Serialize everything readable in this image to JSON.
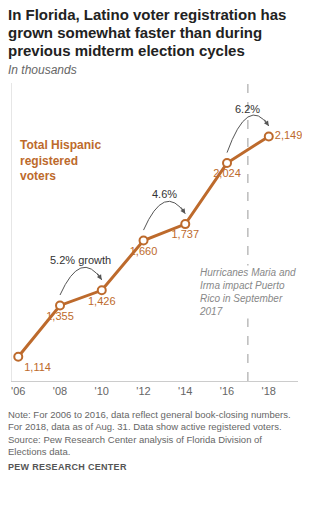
{
  "chart_data": {
    "type": "line",
    "title": "In Florida, Latino voter registration has grown somewhat faster than during previous midterm election cycles",
    "subtitle": "In thousands",
    "x": [
      2006,
      2008,
      2010,
      2012,
      2014,
      2016,
      2018
    ],
    "series": [
      {
        "name": "Total Hispanic registered voters",
        "color": "#bd6a2c",
        "marker": "open circle",
        "values": [
          1114,
          1355,
          1426,
          1660,
          1737,
          2024,
          2149
        ],
        "value_labels": [
          "1,114",
          "1,355",
          "1,426",
          "1,660",
          "1,737",
          "2,024",
          "2,149"
        ]
      }
    ],
    "xlim": [
      2005.7,
      2019.4
    ],
    "xticks": [
      {
        "value": 2006,
        "label": "'06"
      },
      {
        "value": 2008,
        "label": "'08"
      },
      {
        "value": 2010,
        "label": "'10"
      },
      {
        "value": 2012,
        "label": "'12"
      },
      {
        "value": 2014,
        "label": "'14"
      },
      {
        "value": 2016,
        "label": "'16"
      },
      {
        "value": 2018,
        "label": "'18"
      }
    ],
    "ylim": [
      1000,
      2400
    ],
    "yticks": [],
    "tick_labels": "x",
    "grid": false,
    "data_labels": true,
    "annotations": [
      {
        "from": 2008,
        "to": 2010,
        "label": "5.2% growth"
      },
      {
        "from": 2012,
        "to": 2014,
        "label": "4.6%"
      },
      {
        "from": 2016,
        "to": 2018,
        "label": "6.2%"
      }
    ],
    "event": {
      "x": 2017,
      "text": "Hurricanes Maria and Irma impact Puerto Rico in September 2017",
      "line_style": "dashed"
    },
    "notes": [
      "Note: For 2006 to 2016, data reflect general book-closing numbers. For 2018, data as of Aug. 31. Data show active registered voters.",
      "Source: Pew Research Center analysis of Florida Division of Elections data."
    ],
    "credit": "PEW RESEARCH CENTER"
  }
}
